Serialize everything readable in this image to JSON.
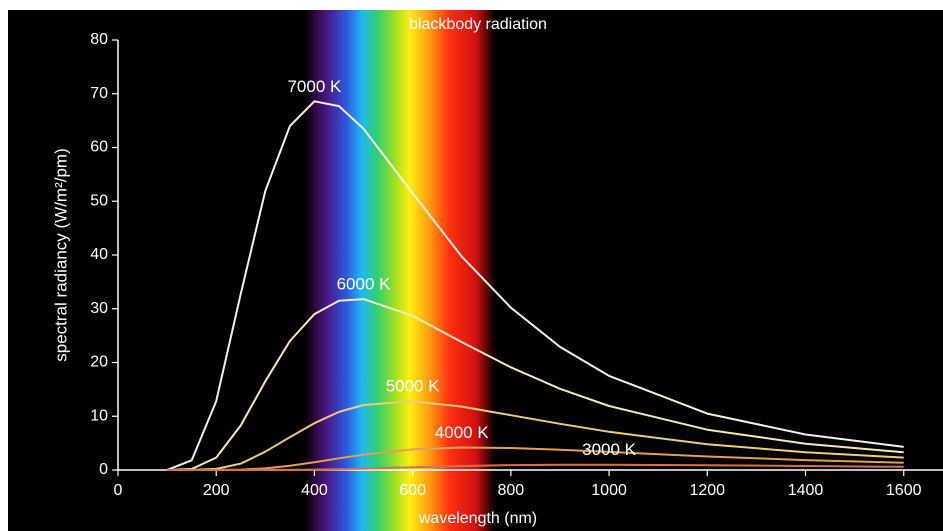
{
  "chart_data": {
    "type": "line",
    "title": "blackbody radiation",
    "x_label": "wavelength (nm)",
    "y_label": "spectral radiancy (W/m²/pm)",
    "x": [
      100,
      150,
      200,
      250,
      300,
      350,
      400,
      450,
      500,
      600,
      700,
      800,
      900,
      1000,
      1200,
      1400,
      1600
    ],
    "series": [
      {
        "name": "7000 K",
        "color": "#f4f1e4",
        "values": [
          0.01,
          1.8,
          12.8,
          32.8,
          51.9,
          64.0,
          68.6,
          67.7,
          63.5,
          51.5,
          39.7,
          30.2,
          22.9,
          17.5,
          10.5,
          6.6,
          4.3
        ]
      },
      {
        "name": "6000 K",
        "color": "#f3eab8",
        "values": [
          0,
          0.18,
          2.3,
          8.3,
          16.5,
          24.0,
          29.0,
          31.5,
          31.8,
          28.7,
          23.8,
          19.1,
          15.1,
          11.9,
          7.5,
          4.9,
          3.3
        ]
      },
      {
        "name": "5000 K",
        "color": "#e9cf7c",
        "values": [
          0,
          0.01,
          0.21,
          1.2,
          3.4,
          6.1,
          8.7,
          10.8,
          12.1,
          12.8,
          11.8,
          10.2,
          8.6,
          7.1,
          4.8,
          3.3,
          2.3
        ]
      },
      {
        "name": "4000 K",
        "color": "#e0a156",
        "values": [
          0,
          0,
          0.01,
          0.07,
          0.3,
          0.78,
          1.44,
          2.18,
          2.86,
          3.83,
          4.18,
          4.1,
          3.78,
          3.36,
          2.51,
          1.84,
          1.34
        ]
      },
      {
        "name": "3000 K",
        "color": "#d2734a",
        "values": [
          0,
          0,
          0,
          0,
          0.01,
          0.03,
          0.07,
          0.15,
          0.26,
          0.52,
          0.75,
          0.91,
          0.98,
          0.99,
          0.89,
          0.74,
          0.6
        ]
      }
    ],
    "xlim": [
      0,
      1680
    ],
    "ylim": [
      0,
      80
    ],
    "xticks": [
      0,
      200,
      400,
      600,
      800,
      1000,
      1200,
      1400,
      1600
    ],
    "yticks": [
      0,
      10,
      20,
      30,
      40,
      50,
      60,
      70,
      80
    ]
  }
}
